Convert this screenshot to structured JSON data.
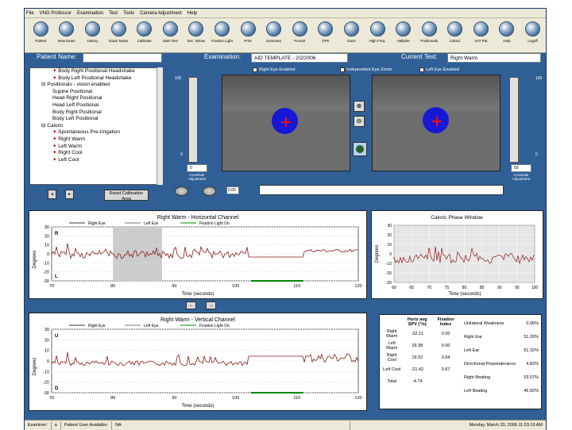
{
  "menu": [
    "File",
    "VNG Professor",
    "Examination",
    "Test",
    "Tools",
    "Camera Adjustment",
    "Help"
  ],
  "toolbar": [
    "Patient",
    "New Exam",
    "History",
    "Exam Notes",
    "Calibrate",
    "Start Test",
    "Sec. Winav",
    "Fixation Light",
    "Print",
    "Summary",
    "Pursuit",
    "OPK",
    "Gaze",
    "High Freq.",
    "Hallpike",
    "Positionals",
    "Caloric",
    "VAT Pat",
    "Help",
    "Logoff"
  ],
  "header": {
    "patient_label": "Patient Name:",
    "patient_value": "",
    "exam_label": "Examination:",
    "exam_value": "AID TEMPLATE - 2/2/2006",
    "test_label": "Current Test:",
    "test_value": "Right Warm"
  },
  "tree": [
    {
      "t": "Body Right Positional Headshake",
      "red": true,
      "ind": 2
    },
    {
      "t": "Body Left Positional Headshake",
      "red": true,
      "ind": 2
    },
    {
      "t": "Positionals - vision enabled",
      "red": false,
      "ind": 1
    },
    {
      "t": "Supine Positional",
      "red": false,
      "ind": 2
    },
    {
      "t": "Head Right Positional",
      "red": false,
      "ind": 2
    },
    {
      "t": "Head Left Positional",
      "red": false,
      "ind": 2
    },
    {
      "t": "Body Right Positional",
      "red": false,
      "ind": 2
    },
    {
      "t": "Body Left Positional",
      "red": false,
      "ind": 2
    },
    {
      "t": "Caloric",
      "red": false,
      "ind": 1
    },
    {
      "t": "Spontaneous Pre-Irrigation",
      "red": true,
      "ind": 2
    },
    {
      "t": "Right Warm",
      "red": true,
      "ind": 2
    },
    {
      "t": "Left Warm",
      "red": true,
      "ind": 2
    },
    {
      "t": "Right Cool",
      "red": true,
      "ind": 2
    },
    {
      "t": "Left Cool",
      "red": true,
      "ind": 2
    }
  ],
  "reset_button": "Reset Calibration Area",
  "right_eye_enabled": "Right Eye Enabled",
  "independent_zoom": "Independent Eye Zoom",
  "left_eye_enabled": "Left Eye Enabled",
  "slider_top": "100",
  "slider_bottom": "0",
  "left_adjust_value": "0",
  "right_adjust_value": "50",
  "left_adjust_label": "Crosshair Adjustment",
  "right_adjust_label": "Crosshair Adjustment",
  "speed_value": "0.00",
  "hchart": {
    "title": "Right Warm - Horizontal Channel",
    "legend": [
      "Right Eye",
      "Left Eye",
      "Fixation Light On"
    ],
    "xlabel": "Time (seconds)",
    "ylabel": "Degrees",
    "xticks": [
      "70",
      "80",
      "90",
      "100",
      "110",
      "120"
    ],
    "yticks": [
      "30",
      "20",
      "10",
      "0",
      "-10",
      "-20",
      "-30"
    ],
    "R": "R",
    "L": "L"
  },
  "caloric": {
    "title": "Caloric Phase Window",
    "xlabel": "Time (seconds)",
    "ylabel": "Degrees",
    "xticks": [
      "60",
      "65",
      "70",
      "75",
      "80",
      "85",
      "90",
      "95",
      "100"
    ],
    "yticks": [
      "30",
      "20",
      "10",
      "0",
      "-10",
      "-20",
      "-30"
    ]
  },
  "vchart": {
    "title": "Right Warm - Vertical Channel",
    "legend": [
      "Right Eye",
      "Left Eye",
      "Fixation Light On"
    ],
    "xlabel": "Time (seconds)",
    "ylabel": "Degrees",
    "xticks": [
      "70",
      "80",
      "90",
      "100",
      "110",
      "120"
    ],
    "yticks": [
      "30",
      "20",
      "10",
      "0",
      "-10",
      "-20",
      "-30"
    ],
    "U": "U",
    "D": "D"
  },
  "stats": {
    "headers": [
      "",
      "Horiz avg SPV (°/s)",
      "Fixation Index"
    ],
    "rows": [
      [
        "Right Warm",
        "-32.21",
        "0.00"
      ],
      [
        "Left Warm",
        "29.38",
        "0.00"
      ],
      [
        "Right Cool",
        "19.02",
        "0.54"
      ],
      [
        "Left Cool",
        "-21.42",
        "0.67"
      ],
      [
        "Total",
        "-4.74",
        ""
      ]
    ],
    "right": [
      [
        "Unilateral Weakness",
        "0.06%"
      ],
      [
        "Right Ear",
        "51.26%"
      ],
      [
        "Left Ear",
        "51.32%"
      ],
      [
        "Directional Preponderance",
        "4.82%"
      ],
      [
        "Right Beating",
        "53.57%"
      ],
      [
        "Left Beating",
        "46.92%"
      ]
    ]
  },
  "status": {
    "examiner_label": "Examiner:",
    "examiner_value": "a",
    "patient_user_label": "Patient User Available:",
    "patient_user_value": "NA",
    "datetime": "Monday, March 20, 2006 11:03:10 AM"
  }
}
